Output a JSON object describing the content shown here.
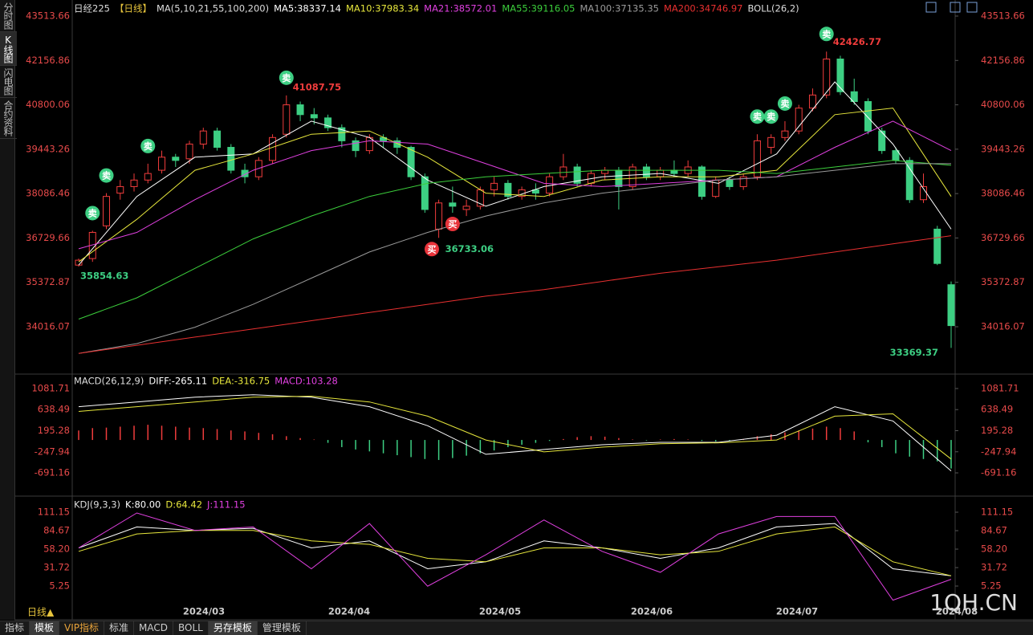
{
  "sidebar": [
    "分时图",
    "K线图",
    "闪电图",
    "合约资料"
  ],
  "footer": {
    "period": "日线▲",
    "tabs": [
      "指标",
      "模板",
      "VIP指标",
      "标准",
      "MACD",
      "BOLL",
      "另存模板",
      "管理模板"
    ]
  },
  "watermark": "1QH.CN",
  "x_axis": {
    "labels": [
      "2024/03",
      "2024/04",
      "2024/05",
      "2024/06",
      "2024/07",
      "2024/08"
    ]
  },
  "chart_data": [
    {
      "type": "candlestick",
      "title": "日经225",
      "period": "【日线】",
      "indicator": "MA(5,10,21,55,100,200)",
      "boll": "BOLL(26,2)",
      "legend": [
        {
          "text": "MA5:38337.14",
          "color": "#ffffff"
        },
        {
          "text": "MA10:37983.34",
          "color": "#e6e63c"
        },
        {
          "text": "MA21:38572.01",
          "color": "#e040e0"
        },
        {
          "text": "MA55:39116.05",
          "color": "#3ccf3c"
        },
        {
          "text": "MA100:37135.35",
          "color": "#9a9a9a"
        },
        {
          "text": "MA200:34746.97",
          "color": "#e83030"
        }
      ],
      "up_color": "#f03c3c",
      "down_color": "#3dcf83",
      "ylim": [
        32666,
        43808
      ],
      "yticks": [
        43513.66,
        42156.86,
        40800.06,
        39443.26,
        38086.46,
        36729.66,
        35372.87,
        34016.07
      ],
      "candles": [
        [
          35900,
          36100,
          35854.63,
          36050
        ],
        [
          36100,
          36950,
          36000,
          36900
        ],
        [
          37100,
          38100,
          37000,
          38000
        ],
        [
          38100,
          38500,
          37900,
          38300
        ],
        [
          38300,
          38700,
          38150,
          38500
        ],
        [
          38500,
          39000,
          38400,
          38700
        ],
        [
          38800,
          39400,
          38700,
          39200
        ],
        [
          39200,
          39300,
          38900,
          39100
        ],
        [
          39150,
          39700,
          39000,
          39600
        ],
        [
          39600,
          40100,
          39450,
          40000
        ],
        [
          40000,
          40100,
          39400,
          39500
        ],
        [
          39500,
          39600,
          38700,
          38800
        ],
        [
          38800,
          39000,
          38400,
          38600
        ],
        [
          38600,
          39200,
          38500,
          39100
        ],
        [
          39100,
          39900,
          39000,
          39800
        ],
        [
          39900,
          41087.75,
          39800,
          40800
        ],
        [
          40800,
          40900,
          40300,
          40500
        ],
        [
          40500,
          40700,
          40200,
          40400
        ],
        [
          40400,
          40500,
          40000,
          40100
        ],
        [
          40100,
          40200,
          39500,
          39700
        ],
        [
          39700,
          39800,
          39200,
          39400
        ],
        [
          39400,
          39900,
          39300,
          39800
        ],
        [
          39800,
          39900,
          39500,
          39700
        ],
        [
          39700,
          39800,
          39300,
          39500
        ],
        [
          39500,
          39550,
          38500,
          38600
        ],
        [
          38600,
          38700,
          37500,
          37600
        ],
        [
          37000,
          37900,
          36733.06,
          37800
        ],
        [
          37800,
          38300,
          37500,
          37700
        ],
        [
          37600,
          37900,
          37400,
          37700
        ],
        [
          37700,
          38300,
          37600,
          38200
        ],
        [
          38200,
          38600,
          38000,
          38400
        ],
        [
          38400,
          38500,
          37900,
          38000
        ],
        [
          38000,
          38300,
          37900,
          38200
        ],
        [
          38200,
          38400,
          37900,
          38100
        ],
        [
          38100,
          38700,
          38000,
          38600
        ],
        [
          38600,
          39300,
          38500,
          38900
        ],
        [
          38900,
          39000,
          38300,
          38400
        ],
        [
          38400,
          38800,
          38300,
          38700
        ],
        [
          38700,
          38900,
          38500,
          38800
        ],
        [
          38800,
          38900,
          37600,
          38300
        ],
        [
          38300,
          39000,
          38200,
          38900
        ],
        [
          38900,
          39000,
          38500,
          38600
        ],
        [
          38600,
          38900,
          38500,
          38800
        ],
        [
          38800,
          39100,
          38600,
          38700
        ],
        [
          38700,
          39100,
          38600,
          38900
        ],
        [
          38900,
          38950,
          37900,
          38000
        ],
        [
          38000,
          38600,
          37950,
          38500
        ],
        [
          38500,
          38600,
          38200,
          38300
        ],
        [
          38300,
          38700,
          38200,
          38600
        ],
        [
          38600,
          39900,
          38500,
          39700
        ],
        [
          39500,
          39900,
          39300,
          39800
        ],
        [
          39800,
          40300,
          39700,
          40000
        ],
        [
          40000,
          40800,
          39900,
          40700
        ],
        [
          40700,
          41300,
          40600,
          41100
        ],
        [
          41100,
          42426.77,
          41000,
          42200
        ],
        [
          42200,
          42300,
          41100,
          41200
        ],
        [
          41200,
          41600,
          40800,
          40900
        ],
        [
          40900,
          41000,
          39900,
          40000
        ],
        [
          40000,
          40100,
          39300,
          39400
        ],
        [
          39400,
          39500,
          39000,
          39100
        ],
        [
          39100,
          39200,
          37800,
          37900
        ],
        [
          37900,
          38700,
          37800,
          38300
        ],
        [
          37000,
          37100,
          35900,
          35950
        ],
        [
          35300,
          35400,
          33369.37,
          34050
        ]
      ],
      "series": [
        {
          "color": "#ffffff",
          "values": [
            35900,
            38000,
            39200,
            39300,
            40300,
            39800,
            38500,
            37700,
            38300,
            38600,
            38700,
            38400,
            39300,
            41500,
            39600,
            37000
          ]
        },
        {
          "color": "#e6e63c",
          "values": [
            36000,
            37300,
            38800,
            39300,
            39900,
            40000,
            39200,
            38100,
            38000,
            38500,
            38600,
            38600,
            38800,
            40500,
            40700,
            38000
          ]
        },
        {
          "color": "#e040e0",
          "values": [
            36400,
            36900,
            37900,
            38800,
            39400,
            39700,
            39600,
            39000,
            38400,
            38300,
            38400,
            38500,
            38600,
            39500,
            40300,
            39400
          ]
        },
        {
          "color": "#3ccf3c",
          "values": [
            34250,
            34900,
            35800,
            36700,
            37400,
            38000,
            38400,
            38600,
            38700,
            38800,
            38800,
            38800,
            38700,
            38900,
            39100,
            38950
          ]
        },
        {
          "color": "#9a9a9a",
          "values": [
            33200,
            33500,
            34000,
            34700,
            35500,
            36300,
            36900,
            37400,
            37800,
            38100,
            38300,
            38500,
            38600,
            38800,
            39000,
            39000
          ]
        },
        {
          "color": "#e83030",
          "values": [
            33200,
            33450,
            33700,
            33950,
            34200,
            34450,
            34700,
            34950,
            35150,
            35400,
            35650,
            35850,
            36050,
            36300,
            36550,
            36800
          ]
        }
      ],
      "signals": [
        "卖",
        "卖",
        "卖",
        "卖",
        "卖",
        "卖",
        "卖",
        "卖",
        "买",
        "买"
      ],
      "price_labels": [
        41087.75,
        42426.77,
        35854.63,
        36733.06,
        33369.37
      ]
    },
    {
      "type": "macd",
      "title": "MACD(26,12,9)",
      "legend": [
        {
          "text": "DIFF:-265.11",
          "color": "#ffffff"
        },
        {
          "text": "DEA:-316.75",
          "color": "#e6e63c"
        },
        {
          "text": "MACD:103.28",
          "color": "#e040e0"
        }
      ],
      "up_color": "#f03c3c",
      "down_color": "#3dcf83",
      "ylim": [
        -1163,
        1351
      ],
      "yticks": [
        1081.71,
        638.49,
        195.28,
        -247.94,
        -691.16
      ],
      "histogram": [
        200,
        250,
        260,
        280,
        300,
        320,
        300,
        280,
        260,
        250,
        230,
        200,
        180,
        150,
        120,
        80,
        40,
        10,
        -60,
        -150,
        -200,
        -240,
        -280,
        -320,
        -360,
        -400,
        -420,
        -380,
        -330,
        -280,
        -220,
        -150,
        -100,
        -60,
        -20,
        20,
        60,
        80,
        70,
        40,
        10,
        -10,
        10,
        20,
        10,
        -20,
        -30,
        -20,
        10,
        80,
        120,
        160,
        200,
        240,
        280,
        250,
        180,
        -50,
        -150,
        -280,
        -350,
        -400,
        -450,
        -600
      ],
      "series": [
        {
          "color": "#ffffff",
          "values": [
            700,
            800,
            900,
            950,
            900,
            700,
            300,
            -300,
            -200,
            -100,
            -50,
            -50,
            100,
            700,
            400,
            -650
          ]
        },
        {
          "color": "#e6e63c",
          "values": [
            600,
            700,
            800,
            900,
            920,
            800,
            500,
            0,
            -250,
            -150,
            -80,
            -60,
            0,
            500,
            550,
            -400
          ]
        }
      ]
    },
    {
      "type": "kdj",
      "title": "KDJ(9,3,3)",
      "legend": [
        {
          "text": "K:80.00",
          "color": "#ffffff"
        },
        {
          "text": "D:64.42",
          "color": "#e6e63c"
        },
        {
          "text": "J:111.15",
          "color": "#e040e0"
        }
      ],
      "ylim": [
        -23.5,
        129.6
      ],
      "yticks": [
        111.15,
        84.67,
        {
          "value": 58.2,
          "label": "58.20"
        },
        31.72,
        5.25
      ],
      "series": [
        {
          "color": "#ffffff",
          "values": [
            60,
            90,
            85,
            88,
            60,
            70,
            30,
            40,
            70,
            60,
            45,
            60,
            90,
            95,
            30,
            20
          ]
        },
        {
          "color": "#e6e63c",
          "values": [
            55,
            80,
            85,
            85,
            70,
            65,
            45,
            40,
            60,
            60,
            50,
            55,
            80,
            90,
            40,
            20
          ]
        },
        {
          "color": "#e040e0",
          "values": [
            60,
            110,
            85,
            90,
            30,
            95,
            5,
            50,
            100,
            55,
            25,
            80,
            105,
            105,
            -15,
            15
          ]
        }
      ]
    }
  ]
}
